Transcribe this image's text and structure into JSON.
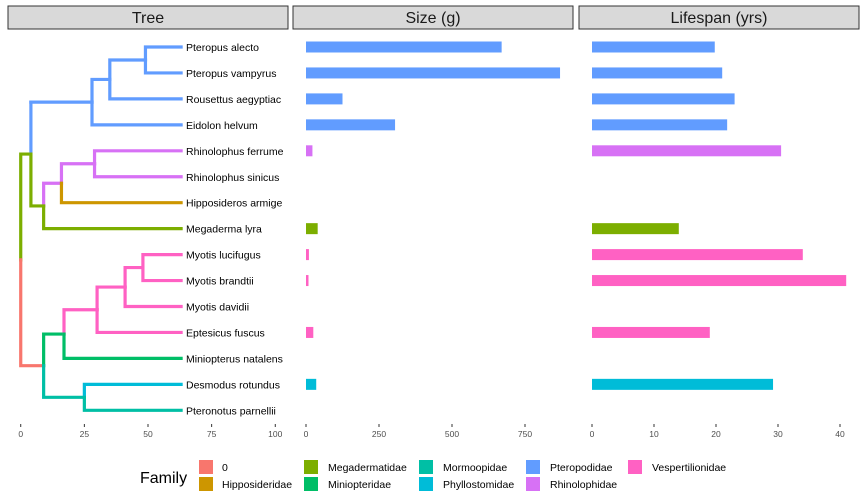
{
  "panels": [
    {
      "key": "tree",
      "title": "Tree"
    },
    {
      "key": "size",
      "title": "Size (g)"
    },
    {
      "key": "lifespan",
      "title": "Lifespan (yrs)"
    }
  ],
  "legend": {
    "title": "Family",
    "entries": [
      {
        "label": "0",
        "color": "#F8766D"
      },
      {
        "label": "Hipposideridae",
        "color": "#CD9600"
      },
      {
        "label": "Megadermatidae",
        "color": "#7CAE00"
      },
      {
        "label": "Miniopteridae",
        "color": "#00BE67"
      },
      {
        "label": "Mormoopidae",
        "color": "#00BFA5"
      },
      {
        "label": "Phyllostomidae",
        "color": "#00BCD8"
      },
      {
        "label": "Pteropodidae",
        "color": "#619CFF"
      },
      {
        "label": "Rhinolophidae",
        "color": "#D771F5"
      },
      {
        "label": "Vespertilionidae",
        "color": "#FF61C3"
      }
    ]
  },
  "chart_data": {
    "type": "bar",
    "categories": [
      "Pteropus alecto",
      "Pteropus vampyrus",
      "Rousettus aegyptiac",
      "Eidolon helvum",
      "Rhinolophus ferrume",
      "Rhinolophus sinicus",
      "Hipposideros armige",
      "Megaderma lyra",
      "Myotis lucifugus",
      "Myotis brandtii",
      "Myotis davidii",
      "Eptesicus fuscus",
      "Miniopterus natalens",
      "Desmodus rotundus",
      "Pteronotus parnellii"
    ],
    "families": [
      "Pteropodidae",
      "Pteropodidae",
      "Pteropodidae",
      "Pteropodidae",
      "Rhinolophidae",
      "Rhinolophidae",
      "Hipposideridae",
      "Megadermatidae",
      "Vespertilionidae",
      "Vespertilionidae",
      "Vespertilionidae",
      "Vespertilionidae",
      "Miniopteridae",
      "Phyllostomidae",
      "Mormoopidae"
    ],
    "series": [
      {
        "name": "Size (g)",
        "values": [
          670,
          870,
          125,
          305,
          22,
          null,
          null,
          40,
          10,
          7,
          null,
          25,
          null,
          35,
          null
        ],
        "xlim": [
          0,
          930
        ],
        "ticks": [
          0,
          250,
          500,
          750
        ]
      },
      {
        "name": "Lifespan (yrs)",
        "values": [
          19.8,
          21,
          23,
          21.8,
          30.5,
          null,
          null,
          14,
          34,
          41,
          null,
          19,
          null,
          29.2,
          null
        ],
        "xlim": [
          0,
          43
        ],
        "ticks": [
          0,
          10,
          20,
          30,
          40
        ]
      }
    ],
    "tree": {
      "xlim": [
        -5,
        105
      ],
      "ticks": [
        0,
        25,
        50,
        75,
        100
      ],
      "nodes": [
        {
          "id": "root",
          "x": 0,
          "parent": null,
          "family": "0"
        },
        {
          "id": "n_upper",
          "x": 4,
          "parent": "root",
          "family": "Megadermatidae"
        },
        {
          "id": "n_pter",
          "x": 4,
          "parent": "n_upper",
          "family": "Pteropodidae"
        },
        {
          "id": "n_pter2",
          "x": 28,
          "parent": "n_pter",
          "family": "Pteropodidae"
        },
        {
          "id": "n_pter3",
          "x": 35,
          "parent": "n_pter2",
          "family": "Pteropodidae"
        },
        {
          "id": "n_pteropus",
          "x": 49,
          "parent": "n_pter3",
          "family": "Pteropodidae"
        },
        {
          "id": "tip0",
          "x": 63,
          "parent": "n_pteropus",
          "family": "Pteropodidae",
          "tip": 0
        },
        {
          "id": "tip1",
          "x": 63,
          "parent": "n_pteropus",
          "family": "Pteropodidae",
          "tip": 1
        },
        {
          "id": "tip2",
          "x": 63,
          "parent": "n_pter3",
          "family": "Pteropodidae",
          "tip": 2
        },
        {
          "id": "tip3",
          "x": 63,
          "parent": "n_pter2",
          "family": "Pteropodidae",
          "tip": 3
        },
        {
          "id": "n_rh_meg",
          "x": 9,
          "parent": "n_upper",
          "family": "Megadermatidae"
        },
        {
          "id": "n_rhin",
          "x": 16,
          "parent": "n_rh_meg",
          "family": "Rhinolophidae"
        },
        {
          "id": "n_rhin2",
          "x": 29,
          "parent": "n_rhin",
          "family": "Rhinolophidae"
        },
        {
          "id": "tip4",
          "x": 63,
          "parent": "n_rhin2",
          "family": "Rhinolophidae",
          "tip": 4
        },
        {
          "id": "tip5",
          "x": 63,
          "parent": "n_rhin2",
          "family": "Rhinolophidae",
          "tip": 5
        },
        {
          "id": "tip6",
          "x": 63,
          "parent": "n_rhin",
          "family": "Hipposideridae",
          "tip": 6
        },
        {
          "id": "tip7",
          "x": 63,
          "parent": "n_rh_meg",
          "family": "Megadermatidae",
          "tip": 7
        },
        {
          "id": "n_lower",
          "x": 9,
          "parent": "root",
          "family": "0"
        },
        {
          "id": "n_vesp_min",
          "x": 17,
          "parent": "n_lower",
          "family": "Miniopteridae"
        },
        {
          "id": "n_vesp",
          "x": 30,
          "parent": "n_vesp_min",
          "family": "Vespertilionidae"
        },
        {
          "id": "n_myo",
          "x": 41,
          "parent": "n_vesp",
          "family": "Vespertilionidae"
        },
        {
          "id": "n_myo2",
          "x": 48,
          "parent": "n_myo",
          "family": "Vespertilionidae"
        },
        {
          "id": "tip8",
          "x": 63,
          "parent": "n_myo2",
          "family": "Vespertilionidae",
          "tip": 8
        },
        {
          "id": "tip9",
          "x": 63,
          "parent": "n_myo2",
          "family": "Vespertilionidae",
          "tip": 9
        },
        {
          "id": "tip10",
          "x": 63,
          "parent": "n_myo",
          "family": "Vespertilionidae",
          "tip": 10
        },
        {
          "id": "tip11",
          "x": 63,
          "parent": "n_vesp",
          "family": "Vespertilionidae",
          "tip": 11
        },
        {
          "id": "tip12",
          "x": 63,
          "parent": "n_vesp_min",
          "family": "Miniopteridae",
          "tip": 12
        },
        {
          "id": "n_noct",
          "x": 25,
          "parent": "n_lower",
          "family": "Mormoopidae"
        },
        {
          "id": "tip13",
          "x": 63,
          "parent": "n_noct",
          "family": "Phyllostomidae",
          "tip": 13
        },
        {
          "id": "tip14",
          "x": 63,
          "parent": "n_noct",
          "family": "Mormoopidae",
          "tip": 14
        }
      ]
    }
  }
}
